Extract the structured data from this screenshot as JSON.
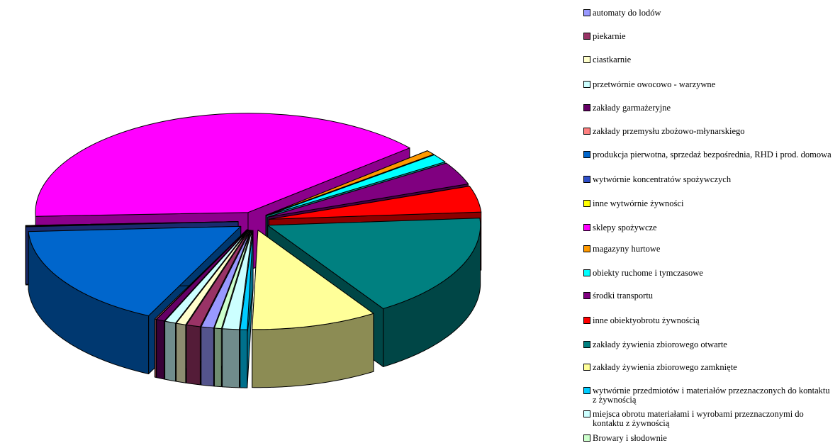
{
  "chart_data": {
    "type": "pie",
    "style": "3d-exploded",
    "legend_position": "right",
    "series": [
      {
        "name": "automaty do lodów",
        "color": "#9999ff",
        "value": 0.9
      },
      {
        "name": "piekarnie",
        "color": "#993366",
        "value": 1.0
      },
      {
        "name": "ciastkarnie",
        "color": "#ffffcc",
        "value": 0.7
      },
      {
        "name": "przetwórnie owocowo - warzywne",
        "color": "#ccffff",
        "value": 0.8
      },
      {
        "name": "zakłady garmażeryjne",
        "color": "#660066",
        "value": 0.6
      },
      {
        "name": "zakłady przemysłu zbożowo-młynarskiego",
        "color": "#ff8080",
        "value": 0.1
      },
      {
        "name": "produkcja pierwotna, sprzedaż bezpośrednia, RHD i prod. domowa",
        "color": "#0066cc",
        "value": 16.0
      },
      {
        "name": "wytwórnie koncentratów spożywczych",
        "color": "#2f4fc8",
        "value": 0.1
      },
      {
        "name": "inne wytwórnie żywności",
        "color": "#ffff00",
        "value": 0.1
      },
      {
        "name": "sklepy spożywcze",
        "color": "#ff00ff",
        "value": 37.0
      },
      {
        "name": "magazyny hurtowe",
        "color": "#ff9900",
        "value": 0.7
      },
      {
        "name": "obiekty ruchome i tymczasowe",
        "color": "#00ffff",
        "value": 1.3
      },
      {
        "name": "środki transportu",
        "color": "#800080",
        "value": 3.5
      },
      {
        "name": "inne obiektyobrotu żywnością",
        "color": "#ff0000",
        "value": 4.0
      },
      {
        "name": "zakłady żywienia zbiorowego otwarte",
        "color": "#008080",
        "value": 16.0
      },
      {
        "name": "zakłady żywienia zbiorowego zamknięte",
        "color": "#ffff99",
        "value": 9.0
      },
      {
        "name": "wytwórnie przedmiotów i materiałów przeznaczonych do kontaktu z żywnością",
        "color": "#00ccff",
        "value": 0.5
      },
      {
        "name": "miejsca obrotu materiałami i wyrobami przeznaczonymi do kontaktu z żywnością",
        "color": "#ccffff",
        "value": 1.2
      },
      {
        "name": "Browary i słodownie",
        "color": "#ccffcc",
        "value": 0.5
      }
    ]
  }
}
